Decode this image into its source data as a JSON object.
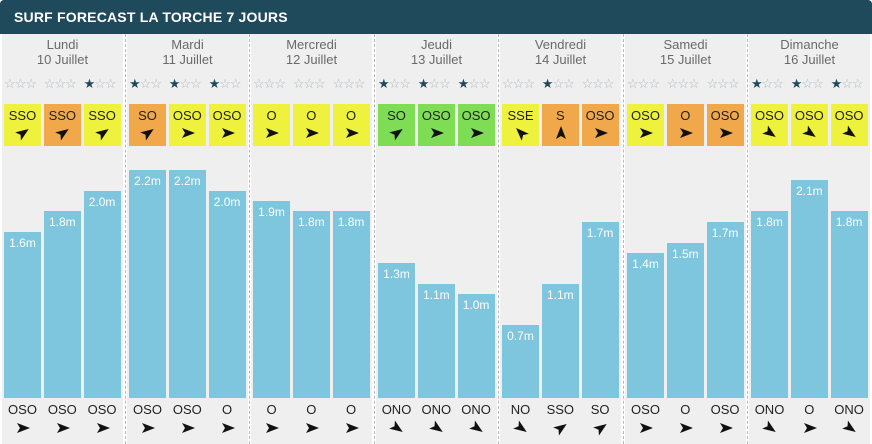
{
  "title": "SURF FORECAST LA TORCHE 7 JOURS",
  "colors": {
    "header_bg": "#1f4a5c",
    "bar": "#7dc6dd",
    "wind_yellow": "#eef23d",
    "wind_orange": "#f0a84a",
    "wind_green": "#7fdd55",
    "star_on": "#1f4a5c",
    "star_off": "#b0b6ba"
  },
  "days": [
    {
      "name": "Lundi",
      "date": "10 Juillet",
      "slots": [
        {
          "stars": 0,
          "wind": "SSO",
          "wind_color": "yellow",
          "wind_arrow": "ne",
          "wave": "1.6m",
          "swell": "OSO",
          "swell_arrow": "e"
        },
        {
          "stars": 0,
          "wind": "SSO",
          "wind_color": "orange",
          "wind_arrow": "ne",
          "wave": "1.8m",
          "swell": "OSO",
          "swell_arrow": "e"
        },
        {
          "stars": 1,
          "wind": "SSO",
          "wind_color": "yellow",
          "wind_arrow": "ne",
          "wave": "2.0m",
          "swell": "OSO",
          "swell_arrow": "e"
        }
      ]
    },
    {
      "name": "Mardi",
      "date": "11 Juillet",
      "slots": [
        {
          "stars": 1,
          "wind": "SO",
          "wind_color": "orange",
          "wind_arrow": "ne",
          "wave": "2.2m",
          "swell": "OSO",
          "swell_arrow": "e"
        },
        {
          "stars": 1,
          "wind": "OSO",
          "wind_color": "yellow",
          "wind_arrow": "e",
          "wave": "2.2m",
          "swell": "OSO",
          "swell_arrow": "e"
        },
        {
          "stars": 1,
          "wind": "OSO",
          "wind_color": "yellow",
          "wind_arrow": "e",
          "wave": "2.0m",
          "swell": "O",
          "swell_arrow": "e"
        }
      ]
    },
    {
      "name": "Mercredi",
      "date": "12 Juillet",
      "slots": [
        {
          "stars": 0,
          "wind": "O",
          "wind_color": "yellow",
          "wind_arrow": "e",
          "wave": "1.9m",
          "swell": "O",
          "swell_arrow": "e"
        },
        {
          "stars": 0,
          "wind": "O",
          "wind_color": "yellow",
          "wind_arrow": "e",
          "wave": "1.8m",
          "swell": "O",
          "swell_arrow": "e"
        },
        {
          "stars": 0,
          "wind": "O",
          "wind_color": "yellow",
          "wind_arrow": "e",
          "wave": "1.8m",
          "swell": "O",
          "swell_arrow": "e"
        }
      ]
    },
    {
      "name": "Jeudi",
      "date": "13 Juillet",
      "slots": [
        {
          "stars": 1,
          "wind": "SO",
          "wind_color": "green",
          "wind_arrow": "ne",
          "wave": "1.3m",
          "swell": "ONO",
          "swell_arrow": "se"
        },
        {
          "stars": 1,
          "wind": "OSO",
          "wind_color": "green",
          "wind_arrow": "e",
          "wave": "1.1m",
          "swell": "ONO",
          "swell_arrow": "se"
        },
        {
          "stars": 1,
          "wind": "OSO",
          "wind_color": "green",
          "wind_arrow": "e",
          "wave": "1.0m",
          "swell": "ONO",
          "swell_arrow": "se"
        }
      ]
    },
    {
      "name": "Vendredi",
      "date": "14 Juillet",
      "slots": [
        {
          "stars": 0,
          "wind": "SSE",
          "wind_color": "yellow",
          "wind_arrow": "nw",
          "wave": "0.7m",
          "swell": "NO",
          "swell_arrow": "se"
        },
        {
          "stars": 1,
          "wind": "S",
          "wind_color": "orange",
          "wind_arrow": "n",
          "wave": "1.1m",
          "swell": "SSO",
          "swell_arrow": "ne"
        },
        {
          "stars": 0,
          "wind": "OSO",
          "wind_color": "orange",
          "wind_arrow": "e",
          "wave": "1.7m",
          "swell": "SO",
          "swell_arrow": "ne"
        }
      ]
    },
    {
      "name": "Samedi",
      "date": "15 Juillet",
      "slots": [
        {
          "stars": 0,
          "wind": "OSO",
          "wind_color": "yellow",
          "wind_arrow": "e",
          "wave": "1.4m",
          "swell": "OSO",
          "swell_arrow": "e"
        },
        {
          "stars": 0,
          "wind": "O",
          "wind_color": "orange",
          "wind_arrow": "e",
          "wave": "1.5m",
          "swell": "O",
          "swell_arrow": "e"
        },
        {
          "stars": 0,
          "wind": "OSO",
          "wind_color": "orange",
          "wind_arrow": "e",
          "wave": "1.7m",
          "swell": "OSO",
          "swell_arrow": "e"
        }
      ]
    },
    {
      "name": "Dimanche",
      "date": "16 Juillet",
      "slots": [
        {
          "stars": 1,
          "wind": "OSO",
          "wind_color": "yellow",
          "wind_arrow": "se",
          "wave": "1.8m",
          "swell": "ONO",
          "swell_arrow": "se"
        },
        {
          "stars": 1,
          "wind": "OSO",
          "wind_color": "yellow",
          "wind_arrow": "se",
          "wave": "2.1m",
          "swell": "O",
          "swell_arrow": "e"
        },
        {
          "stars": 1,
          "wind": "OSO",
          "wind_color": "yellow",
          "wind_arrow": "se",
          "wave": "1.8m",
          "swell": "ONO",
          "swell_arrow": "se"
        }
      ]
    }
  ],
  "chart_data": {
    "type": "bar",
    "title": "SURF FORECAST LA TORCHE 7 JOURS",
    "categories": [
      "Lundi 10 Juillet",
      "Lundi 10 Juillet",
      "Lundi 10 Juillet",
      "Mardi 11 Juillet",
      "Mardi 11 Juillet",
      "Mardi 11 Juillet",
      "Mercredi 12 Juillet",
      "Mercredi 12 Juillet",
      "Mercredi 12 Juillet",
      "Jeudi 13 Juillet",
      "Jeudi 13 Juillet",
      "Jeudi 13 Juillet",
      "Vendredi 14 Juillet",
      "Vendredi 14 Juillet",
      "Vendredi 14 Juillet",
      "Samedi 15 Juillet",
      "Samedi 15 Juillet",
      "Samedi 15 Juillet",
      "Dimanche 16 Juillet",
      "Dimanche 16 Juillet",
      "Dimanche 16 Juillet"
    ],
    "values": [
      1.6,
      1.8,
      2.0,
      2.2,
      2.2,
      2.0,
      1.9,
      1.8,
      1.8,
      1.3,
      1.1,
      1.0,
      0.7,
      1.1,
      1.7,
      1.4,
      1.5,
      1.7,
      1.8,
      2.1,
      1.8
    ],
    "unit": "m",
    "ylim": [
      0,
      2.2
    ],
    "grid": false
  }
}
